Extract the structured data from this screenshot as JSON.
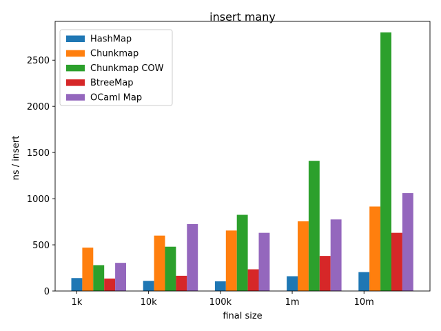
{
  "chart_data": {
    "type": "bar",
    "title": "insert many",
    "xlabel": "final size",
    "ylabel": "ns / insert",
    "categories": [
      "1k",
      "10k",
      "100k",
      "1m",
      "10m"
    ],
    "ylim": [
      0,
      2920
    ],
    "yticks": [
      0,
      500,
      1000,
      1500,
      2000,
      2500
    ],
    "grid": false,
    "legend_position": "top-left",
    "series": [
      {
        "name": "HashMap",
        "color": "#1f77b4",
        "values": [
          140,
          110,
          105,
          160,
          205
        ]
      },
      {
        "name": "Chunkmap",
        "color": "#ff7f0e",
        "values": [
          470,
          600,
          655,
          755,
          915
        ]
      },
      {
        "name": "Chunkmap COW",
        "color": "#2ca02c",
        "values": [
          280,
          480,
          825,
          1410,
          2800
        ]
      },
      {
        "name": "BtreeMap",
        "color": "#d62728",
        "values": [
          135,
          165,
          235,
          380,
          630
        ]
      },
      {
        "name": "OCaml Map",
        "color": "#9467bd",
        "values": [
          305,
          725,
          630,
          775,
          1060
        ]
      }
    ]
  }
}
